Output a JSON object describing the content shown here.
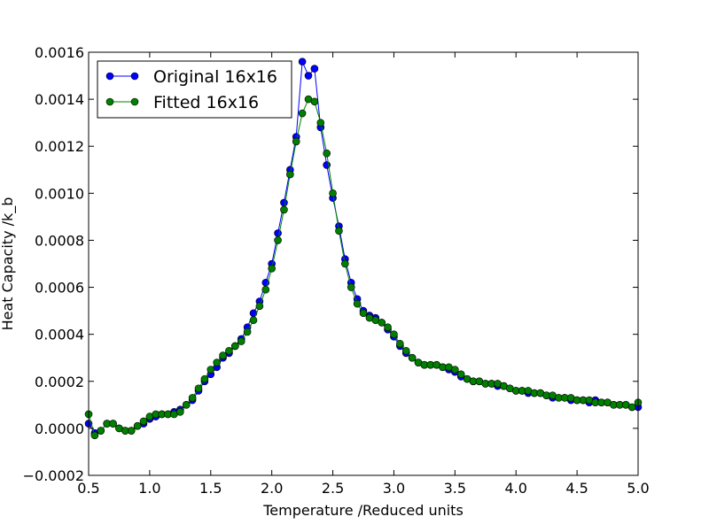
{
  "chart_data": {
    "type": "line",
    "title": "",
    "xlabel": "Temperature /Reduced units",
    "ylabel": "Heat Capacity /k_b",
    "xlim": [
      0.5,
      5.0
    ],
    "ylim": [
      -0.0002,
      0.0016
    ],
    "xticks": [
      "0.5",
      "1.0",
      "1.5",
      "2.0",
      "2.5",
      "3.0",
      "3.5",
      "4.0",
      "4.5",
      "5.0"
    ],
    "yticks": [
      "−0.0002",
      "0.0000",
      "0.0002",
      "0.0004",
      "0.0006",
      "0.0008",
      "0.0010",
      "0.0012",
      "0.0014",
      "0.0016"
    ],
    "grid": false,
    "legend_position": "top-left",
    "x": [
      0.5,
      0.55,
      0.6,
      0.65,
      0.7,
      0.75,
      0.8,
      0.85,
      0.9,
      0.95,
      1.0,
      1.05,
      1.1,
      1.15,
      1.2,
      1.25,
      1.3,
      1.35,
      1.4,
      1.45,
      1.5,
      1.55,
      1.6,
      1.65,
      1.7,
      1.75,
      1.8,
      1.85,
      1.9,
      1.95,
      2.0,
      2.05,
      2.1,
      2.15,
      2.2,
      2.25,
      2.3,
      2.35,
      2.4,
      2.45,
      2.5,
      2.55,
      2.6,
      2.65,
      2.7,
      2.75,
      2.8,
      2.85,
      2.9,
      2.95,
      3.0,
      3.05,
      3.1,
      3.15,
      3.2,
      3.25,
      3.3,
      3.35,
      3.4,
      3.45,
      3.5,
      3.55,
      3.6,
      3.65,
      3.7,
      3.75,
      3.8,
      3.85,
      3.9,
      3.95,
      4.0,
      4.05,
      4.1,
      4.15,
      4.2,
      4.25,
      4.3,
      4.35,
      4.4,
      4.45,
      4.5,
      4.55,
      4.6,
      4.65,
      4.7,
      4.75,
      4.8,
      4.85,
      4.9,
      4.95,
      5.0
    ],
    "series": [
      {
        "name": "Original 16x16",
        "color": "#0000ff",
        "values": [
          2e-05,
          -2e-05,
          -1e-05,
          2e-05,
          2e-05,
          0.0,
          -1e-05,
          -1e-05,
          1e-05,
          2e-05,
          4e-05,
          5e-05,
          6e-05,
          6e-05,
          7e-05,
          8e-05,
          0.0001,
          0.00012,
          0.00016,
          0.0002,
          0.00023,
          0.00026,
          0.0003,
          0.00032,
          0.00035,
          0.00038,
          0.00043,
          0.00049,
          0.00054,
          0.00062,
          0.0007,
          0.00083,
          0.00096,
          0.0011,
          0.00124,
          0.00156,
          0.0015,
          0.00153,
          0.00128,
          0.00112,
          0.00098,
          0.00086,
          0.00072,
          0.00062,
          0.00055,
          0.0005,
          0.00048,
          0.00047,
          0.00045,
          0.00042,
          0.00039,
          0.00035,
          0.00032,
          0.0003,
          0.00028,
          0.00027,
          0.00027,
          0.00027,
          0.00026,
          0.00025,
          0.00024,
          0.00022,
          0.00021,
          0.0002,
          0.0002,
          0.00019,
          0.00019,
          0.00018,
          0.00018,
          0.00017,
          0.00016,
          0.00016,
          0.00015,
          0.00015,
          0.00015,
          0.00014,
          0.00013,
          0.00013,
          0.00013,
          0.00012,
          0.00012,
          0.00012,
          0.00011,
          0.00012,
          0.00011,
          0.00011,
          0.0001,
          0.0001,
          0.0001,
          9e-05,
          9e-05
        ]
      },
      {
        "name": "Fitted 16x16",
        "color": "#007f00",
        "values": [
          6e-05,
          -3e-05,
          -1e-05,
          2e-05,
          2e-05,
          0.0,
          -1e-05,
          -1e-05,
          1e-05,
          3e-05,
          5e-05,
          6e-05,
          6e-05,
          6e-05,
          6e-05,
          7e-05,
          0.0001,
          0.00013,
          0.00017,
          0.00021,
          0.00025,
          0.00028,
          0.00031,
          0.00033,
          0.00035,
          0.00037,
          0.00041,
          0.00046,
          0.00052,
          0.00059,
          0.00068,
          0.0008,
          0.00093,
          0.00108,
          0.00122,
          0.00134,
          0.0014,
          0.00139,
          0.0013,
          0.00117,
          0.001,
          0.00084,
          0.0007,
          0.0006,
          0.00053,
          0.00049,
          0.00047,
          0.00046,
          0.00045,
          0.00043,
          0.0004,
          0.00036,
          0.00033,
          0.0003,
          0.00028,
          0.00027,
          0.00027,
          0.00027,
          0.00026,
          0.00026,
          0.00025,
          0.00023,
          0.00021,
          0.0002,
          0.0002,
          0.00019,
          0.00019,
          0.00019,
          0.00018,
          0.00017,
          0.00016,
          0.00016,
          0.00016,
          0.00015,
          0.00015,
          0.00014,
          0.00014,
          0.00013,
          0.00013,
          0.00013,
          0.00012,
          0.00012,
          0.00012,
          0.00011,
          0.00011,
          0.00011,
          0.0001,
          0.0001,
          0.0001,
          9e-05,
          0.00011
        ]
      }
    ]
  }
}
